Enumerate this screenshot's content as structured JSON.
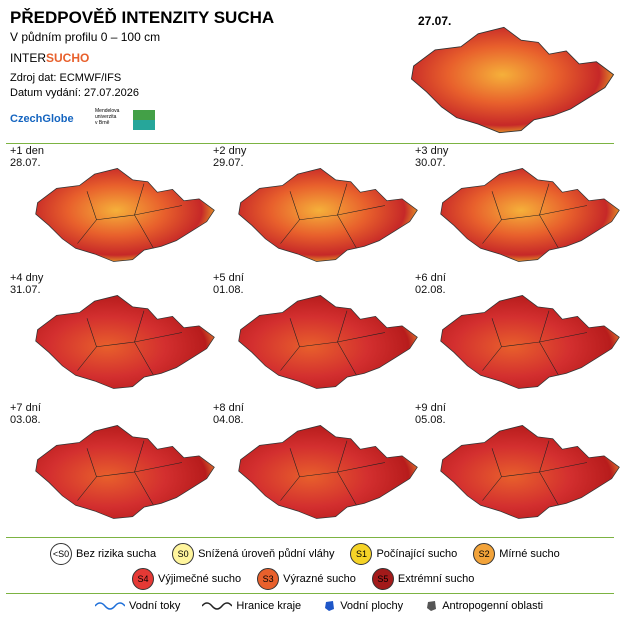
{
  "header": {
    "title": "PŘEDPOVĚĎ INTENZITY SUCHA",
    "subtitle": "V půdním profilu 0 – 100 cm",
    "brand": {
      "prefix": "INTER",
      "suffix": "SUCHO"
    },
    "source": "Zdroj dat: ECMWF/IFS",
    "issued": "Datum vydání: 27.07.2026",
    "logos": {
      "czechglobe": "CzechGlobe",
      "mendelu": [
        "Mendelova",
        "univerzita",
        "v Brně"
      ]
    }
  },
  "main_map": {
    "date": "27.07."
  },
  "panels": [
    {
      "lead": "+1 den",
      "date": "28.07."
    },
    {
      "lead": "+2 dny",
      "date": "29.07."
    },
    {
      "lead": "+3 dny",
      "date": "30.07."
    },
    {
      "lead": "+4 dny",
      "date": "31.07."
    },
    {
      "lead": "+5 dní",
      "date": "01.08."
    },
    {
      "lead": "+6 dní",
      "date": "02.08."
    },
    {
      "lead": "+7 dní",
      "date": "03.08."
    },
    {
      "lead": "+8 dní",
      "date": "04.08."
    },
    {
      "lead": "+9 dní",
      "date": "05.08."
    }
  ],
  "legend": {
    "classes": [
      {
        "code": "<S0",
        "label": "Bez rizika sucha",
        "color": "#ffffff"
      },
      {
        "code": "S0",
        "label": "Snížená úroveň půdní vláhy",
        "color": "#fff59d"
      },
      {
        "code": "S1",
        "label": "Počínající sucho",
        "color": "#f5d327"
      },
      {
        "code": "S2",
        "label": "Mírné sucho",
        "color": "#f2a33a"
      },
      {
        "code": "S4",
        "label": "Výjimečné sucho",
        "color": "#e53935"
      },
      {
        "code": "S3",
        "label": "Výrazné sucho",
        "color": "#e8602c"
      },
      {
        "code": "S5",
        "label": "Extrémní sucho",
        "color": "#a31a1a"
      }
    ],
    "lines": [
      "Vodní toky",
      "Hranice kraje",
      "Vodní plochy",
      "Antropogenní oblasti"
    ]
  }
}
